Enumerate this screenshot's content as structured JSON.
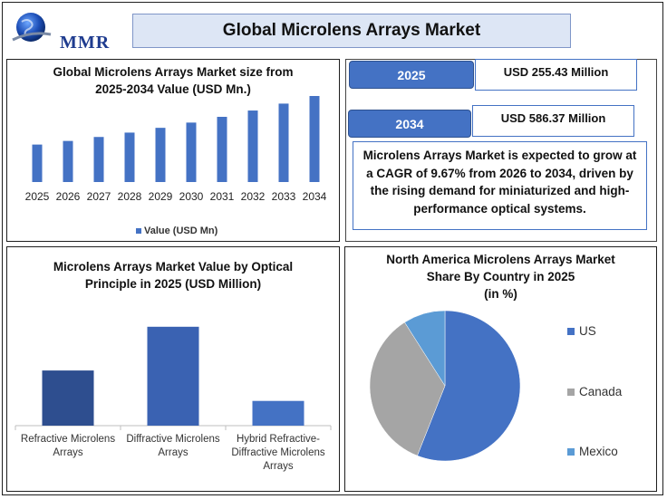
{
  "brand": {
    "name": "MMR"
  },
  "title": "Global Microlens Arrays Market",
  "stats": [
    {
      "year": "2025",
      "value": "USD 255.43 Million"
    },
    {
      "year": "2034",
      "value": "USD 586.37 Million"
    }
  ],
  "summary": "Microlens Arrays Market is expected to grow at a CAGR of 9.67% from 2026 to 2034, driven by the rising demand for miniaturized and high-performance optical systems.",
  "chart_data": [
    {
      "type": "bar",
      "title": "Global Microlens Arrays Market size from 2025-2034 Value (USD Mn.)",
      "title_lines": [
        "Global Microlens Arrays Market size from",
        "2025-2034 Value (USD Mn.)"
      ],
      "categories": [
        "2025",
        "2026",
        "2027",
        "2028",
        "2029",
        "2030",
        "2031",
        "2032",
        "2033",
        "2034"
      ],
      "series": [
        {
          "name": "Value (USD Mn)",
          "values": [
            255.43,
            280.1,
            307.2,
            336.9,
            369.5,
            405.2,
            444.4,
            487.4,
            534.5,
            586.37
          ]
        }
      ],
      "ylim": [
        0,
        700
      ],
      "legend": "bottom",
      "grid": false,
      "color": "#4472c4"
    },
    {
      "type": "bar",
      "title": "Microlens Arrays Market Value  by Optical Principle in 2025 (USD Million)",
      "title_lines": [
        "Microlens Arrays Market Value  by Optical",
        "Principle in 2025 (USD Million)"
      ],
      "categories": [
        "Refractive Microlens Arrays",
        "Diffractive Microlens Arrays",
        "Hybrid Refractive-Diffractive Microlens Arrays"
      ],
      "category_lines": [
        [
          "Refractive Microlens",
          "Arrays"
        ],
        [
          "Diffractive Microlens",
          "Arrays"
        ],
        [
          "Hybrid Refractive-",
          "Diffractive Microlens",
          "Arrays"
        ]
      ],
      "values": [
        58,
        104,
        26
      ],
      "ylim": [
        0,
        120
      ],
      "grid": false,
      "colors": [
        "#2e4e8f",
        "#3a62b2",
        "#4472c4"
      ]
    },
    {
      "type": "pie",
      "title": "North America Microlens Arrays Market Share By Country in 2025 (in %)",
      "title_lines": [
        "North America Microlens Arrays Market",
        "Share By Country in 2025",
        "(in %)"
      ],
      "categories": [
        "US",
        "Canada",
        "Mexico"
      ],
      "values": [
        56,
        35,
        9
      ],
      "colors": [
        "#4472c4",
        "#a5a5a5",
        "#5b9bd5"
      ],
      "legend": "right"
    }
  ]
}
